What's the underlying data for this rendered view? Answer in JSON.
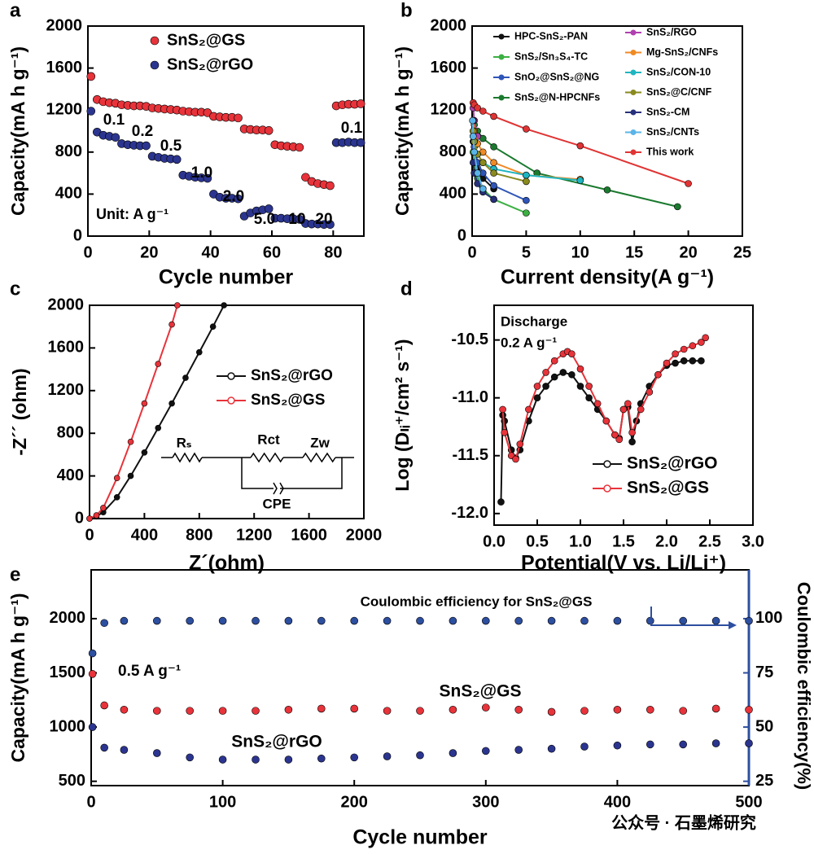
{
  "chart_data": [
    {
      "type": "scatter",
      "label": "a",
      "xlabel": "Cycle number",
      "ylabel": "Capacity(mA h g⁻¹)",
      "xlim": [
        0,
        90
      ],
      "xticks": [
        0,
        20,
        40,
        60,
        80
      ],
      "ylim": [
        0,
        2000
      ],
      "yticks": [
        0,
        400,
        800,
        1200,
        1600,
        2000
      ],
      "x": [
        1,
        3,
        5,
        7,
        9,
        11,
        13,
        15,
        17,
        19,
        21,
        23,
        25,
        27,
        29,
        31,
        33,
        35,
        37,
        39,
        41,
        43,
        45,
        47,
        49,
        51,
        53,
        55,
        57,
        59,
        61,
        63,
        65,
        67,
        69,
        71,
        73,
        75,
        77,
        79,
        81,
        83,
        85,
        87,
        89
      ],
      "series": [
        {
          "name": "SnS₂@GS",
          "color": "#e8333a",
          "values": [
            1520,
            1300,
            1280,
            1270,
            1265,
            1250,
            1245,
            1240,
            1240,
            1235,
            1220,
            1215,
            1210,
            1205,
            1200,
            1190,
            1185,
            1180,
            1180,
            1175,
            1140,
            1135,
            1130,
            1130,
            1125,
            1020,
            1015,
            1010,
            1010,
            1005,
            870,
            860,
            855,
            850,
            845,
            560,
            520,
            500,
            490,
            480,
            1240,
            1250,
            1255,
            1255,
            1260
          ]
        },
        {
          "name": "SnS₂@rGO",
          "color": "#2b3590",
          "values": [
            1190,
            990,
            960,
            950,
            940,
            880,
            870,
            865,
            860,
            860,
            760,
            750,
            740,
            735,
            730,
            580,
            570,
            560,
            555,
            550,
            400,
            370,
            360,
            360,
            355,
            190,
            220,
            240,
            250,
            260,
            170,
            170,
            165,
            165,
            160,
            120,
            115,
            115,
            110,
            110,
            890,
            890,
            895,
            890,
            890
          ]
        }
      ],
      "legend": "upper center",
      "annotations": [
        "0.1",
        "0.2",
        "0.5",
        "1.0",
        "2.0",
        "5.0",
        "10",
        "20",
        "0.1",
        "Unit: A g⁻¹"
      ]
    },
    {
      "type": "line",
      "label": "b",
      "xlabel": "Current density(A g⁻¹)",
      "ylabel": "Capacity(mA h g⁻¹)",
      "xlim": [
        0,
        25
      ],
      "xticks": [
        0,
        5,
        10,
        15,
        20,
        25
      ],
      "ylim": [
        0,
        2000
      ],
      "yticks": [
        0,
        400,
        800,
        1200,
        1600,
        2000
      ],
      "series": [
        {
          "name": "HPC-SnS₂-PAN",
          "color": "#111111",
          "x": [
            0.1,
            0.2,
            0.5,
            1,
            2
          ],
          "values": [
            900,
            780,
            650,
            550,
            450
          ]
        },
        {
          "name": "SnS₂/Sn₃S₄-TC",
          "color": "#3cb043",
          "x": [
            0.1,
            0.2,
            0.5,
            1,
            2,
            5
          ],
          "values": [
            800,
            700,
            550,
            450,
            350,
            220
          ]
        },
        {
          "name": "SnO₂@SnS₂@NG",
          "color": "#2f55b8",
          "x": [
            0.1,
            0.2,
            0.5,
            1,
            2,
            5
          ],
          "values": [
            950,
            850,
            700,
            600,
            480,
            340
          ]
        },
        {
          "name": "SnS₂@N-HPCNFs",
          "color": "#1a7a2e",
          "x": [
            0.2,
            0.5,
            1,
            2,
            6,
            12.5,
            19
          ],
          "values": [
            1060,
            1000,
            930,
            850,
            600,
            440,
            280
          ]
        },
        {
          "name": "SnS₂/RGO",
          "color": "#b040b0",
          "x": [
            0.1,
            0.2,
            0.5
          ],
          "values": [
            1220,
            1100,
            950
          ]
        },
        {
          "name": "Mg-SnS₂/CNFs",
          "color": "#f08a24",
          "x": [
            0.1,
            0.2,
            0.5,
            1,
            2,
            5,
            10
          ],
          "values": [
            1100,
            1000,
            880,
            800,
            700,
            580,
            540
          ]
        },
        {
          "name": "SnS₂/CON-10",
          "color": "#1fb5c0",
          "x": [
            0.1,
            0.2,
            0.5,
            1,
            2,
            5,
            10
          ],
          "values": [
            1000,
            900,
            780,
            700,
            640,
            580,
            530
          ]
        },
        {
          "name": "SnS₂@C/CNF",
          "color": "#8a8a1e",
          "x": [
            0.1,
            0.2,
            0.5,
            1,
            2,
            5
          ],
          "values": [
            1000,
            900,
            780,
            700,
            600,
            520
          ]
        },
        {
          "name": "SnS₂-CM",
          "color": "#27307a",
          "x": [
            0.1,
            0.2,
            0.5,
            1,
            2
          ],
          "values": [
            700,
            600,
            500,
            420,
            350
          ]
        },
        {
          "name": "SnS₂/CNTs",
          "color": "#5ab4e8",
          "x": [
            0.05,
            0.1,
            0.2,
            0.5,
            1
          ],
          "values": [
            1100,
            950,
            800,
            600,
            450
          ]
        },
        {
          "name": "This work",
          "color": "#e03434",
          "x": [
            0.1,
            0.2,
            0.5,
            1,
            2,
            5,
            10,
            20
          ],
          "values": [
            1270,
            1250,
            1220,
            1190,
            1140,
            1020,
            860,
            500
          ]
        }
      ],
      "legend": "upper right",
      "legend_colored_text": true
    },
    {
      "type": "line",
      "label": "c",
      "xlabel": "Z´(ohm)",
      "ylabel": "-Z´´ (ohm)",
      "xlim": [
        0,
        2000
      ],
      "xticks": [
        0,
        400,
        800,
        1200,
        1600,
        2000
      ],
      "ylim": [
        0,
        2000
      ],
      "yticks": [
        0,
        400,
        800,
        1200,
        1600,
        2000
      ],
      "series": [
        {
          "name": "SnS₂@rGO",
          "color": "#111111",
          "x": [
            0,
            50,
            100,
            200,
            300,
            400,
            500,
            600,
            700,
            800,
            900,
            980
          ],
          "values": [
            0,
            20,
            60,
            200,
            400,
            620,
            850,
            1080,
            1320,
            1560,
            1800,
            2000
          ]
        },
        {
          "name": "SnS₂@GS",
          "color": "#e8333a",
          "x": [
            0,
            50,
            100,
            200,
            300,
            400,
            500,
            600,
            640
          ],
          "values": [
            0,
            30,
            100,
            380,
            720,
            1080,
            1450,
            1820,
            2000
          ]
        }
      ],
      "legend": "center right",
      "legend_colored_text": true,
      "annotations": [
        "Rₛ",
        "Rct",
        "Zw",
        "CPE"
      ]
    },
    {
      "type": "line",
      "label": "d",
      "xlabel": "Potential(V vs. Li/Li⁺)",
      "ylabel": "Log (Dₗᵢ⁺/cm² s⁻¹)",
      "xlim": [
        0,
        3
      ],
      "xticks": [
        {
          "value": 0,
          "label": "0.0"
        },
        0.5,
        {
          "value": 1,
          "label": "1.0"
        },
        1.5,
        {
          "value": 2,
          "label": "2.0"
        },
        2.5,
        {
          "value": 3,
          "label": "3.0"
        }
      ],
      "ylim": [
        -12.1,
        -10.2
      ],
      "yticks": [
        {
          "value": -12,
          "label": "-12.0"
        },
        -11.5,
        {
          "value": -11,
          "label": "-11.0"
        },
        -10.5
      ],
      "series": [
        {
          "name": "SnS₂@rGO",
          "color": "#111111",
          "x": [
            0.08,
            0.1,
            0.12,
            0.2,
            0.25,
            0.3,
            0.4,
            0.5,
            0.6,
            0.7,
            0.8,
            0.9,
            1.0,
            1.1,
            1.2,
            1.3,
            1.4,
            1.45,
            1.5,
            1.55,
            1.6,
            1.65,
            1.7,
            1.8,
            1.9,
            2.0,
            2.1,
            2.2,
            2.3,
            2.4
          ],
          "values": [
            -11.9,
            -11.15,
            -11.2,
            -11.45,
            -11.52,
            -11.45,
            -11.2,
            -11.0,
            -10.9,
            -10.82,
            -10.78,
            -10.8,
            -10.9,
            -11.0,
            -11.1,
            -11.2,
            -11.32,
            -11.35,
            -11.1,
            -11.08,
            -11.38,
            -11.2,
            -11.05,
            -10.9,
            -10.8,
            -10.72,
            -10.7,
            -10.68,
            -10.68,
            -10.68
          ]
        },
        {
          "name": "SnS₂@GS",
          "color": "#e8333a",
          "x": [
            0.1,
            0.12,
            0.2,
            0.25,
            0.3,
            0.4,
            0.5,
            0.6,
            0.7,
            0.8,
            0.85,
            0.9,
            1.0,
            1.1,
            1.2,
            1.3,
            1.4,
            1.45,
            1.5,
            1.55,
            1.6,
            1.7,
            1.8,
            1.9,
            2.0,
            2.1,
            2.2,
            2.3,
            2.4,
            2.45
          ],
          "values": [
            -11.1,
            -11.3,
            -11.5,
            -11.53,
            -11.4,
            -11.1,
            -10.9,
            -10.78,
            -10.68,
            -10.62,
            -10.6,
            -10.62,
            -10.75,
            -10.9,
            -11.05,
            -11.2,
            -11.32,
            -11.36,
            -11.1,
            -11.05,
            -11.3,
            -11.1,
            -10.95,
            -10.8,
            -10.7,
            -10.62,
            -10.58,
            -10.55,
            -10.52,
            -10.48
          ]
        }
      ],
      "legend": "lower right",
      "legend_colored_text": true,
      "annotations": [
        "Discharge",
        "0.2 A g⁻¹"
      ]
    },
    {
      "type": "scatter",
      "label": "e",
      "xlabel": "Cycle number",
      "ylabel": "Capacity(mA h g⁻¹)",
      "y2label": "Coulombic efficiency(%)",
      "xlim": [
        0,
        500
      ],
      "xticks": [
        0,
        100,
        200,
        300,
        400,
        500
      ],
      "ylim": [
        460,
        2450
      ],
      "yticks": [
        500,
        1000,
        1500,
        2000
      ],
      "y2lim": [
        23,
        122.5
      ],
      "y2ticks": [
        25,
        50,
        75,
        100
      ],
      "y2_color": "#2d4fa0",
      "x": [
        1,
        10,
        25,
        50,
        75,
        100,
        125,
        150,
        175,
        200,
        225,
        250,
        275,
        300,
        325,
        350,
        375,
        400,
        425,
        450,
        475,
        500
      ],
      "series": [
        {
          "name": "SnS₂@GS",
          "color": "#e8333a",
          "values": [
            1490,
            1200,
            1160,
            1150,
            1150,
            1150,
            1150,
            1160,
            1170,
            1170,
            1150,
            1150,
            1160,
            1180,
            1160,
            1140,
            1150,
            1160,
            1160,
            1150,
            1170,
            1160
          ]
        },
        {
          "name": "SnS₂@rGO",
          "color": "#2b3590",
          "values": [
            1000,
            810,
            790,
            760,
            720,
            700,
            700,
            700,
            710,
            720,
            730,
            740,
            760,
            780,
            790,
            800,
            820,
            830,
            840,
            840,
            850,
            850
          ]
        },
        {
          "name": "Coulombic efficiency for SnS₂@GS",
          "color": "#2d4fa0",
          "axis": "y2",
          "values": [
            84,
            98,
            99,
            99,
            99,
            99,
            99,
            99,
            99,
            99,
            99,
            99,
            99,
            99,
            99,
            99,
            99,
            99,
            99,
            99,
            99,
            99
          ]
        }
      ],
      "legend": "inline",
      "annotations": [
        "0.5 A g⁻¹"
      ],
      "watermark": "公众号 · 石墨烯研究"
    }
  ]
}
